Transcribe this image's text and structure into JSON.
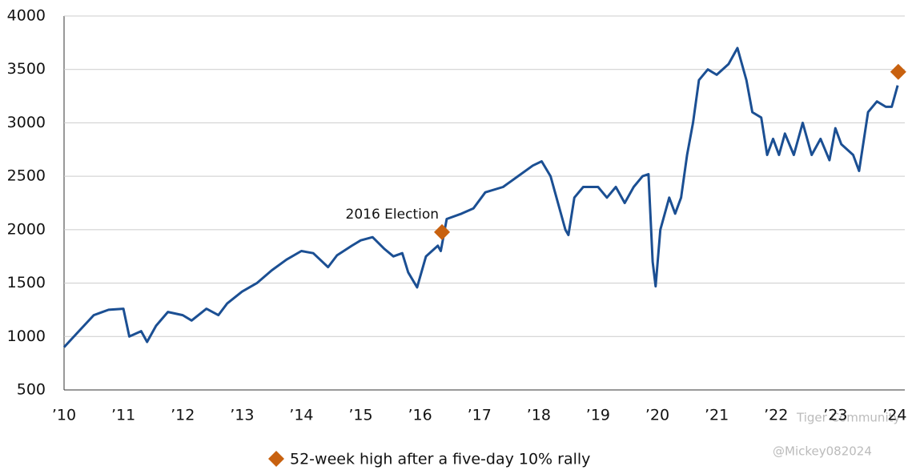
{
  "chart_data": {
    "type": "line",
    "color": "#1b4f93",
    "x": [
      2010.0,
      2010.25,
      2010.5,
      2010.75,
      2011.0,
      2011.1,
      2011.3,
      2011.4,
      2011.55,
      2011.75,
      2012.0,
      2012.15,
      2012.4,
      2012.6,
      2012.75,
      2013.0,
      2013.25,
      2013.5,
      2013.75,
      2014.0,
      2014.2,
      2014.45,
      2014.6,
      2014.85,
      2015.0,
      2015.2,
      2015.4,
      2015.55,
      2015.7,
      2015.8,
      2015.95,
      2016.1,
      2016.3,
      2016.35,
      2016.45,
      2016.7,
      2016.9,
      2017.1,
      2017.4,
      2017.65,
      2017.9,
      2018.05,
      2018.2,
      2018.3,
      2018.45,
      2018.5,
      2018.6,
      2018.75,
      2019.0,
      2019.15,
      2019.3,
      2019.45,
      2019.6,
      2019.75,
      2019.85,
      2019.92,
      2019.97,
      2020.05,
      2020.2,
      2020.3,
      2020.4,
      2020.5,
      2020.6,
      2020.7,
      2020.85,
      2021.0,
      2021.2,
      2021.35,
      2021.5,
      2021.6,
      2021.75,
      2021.85,
      2021.95,
      2022.05,
      2022.15,
      2022.3,
      2022.45,
      2022.6,
      2022.75,
      2022.9,
      2023.0,
      2023.1,
      2023.3,
      2023.4,
      2023.55,
      2023.7,
      2023.85,
      2023.95,
      2024.05
    ],
    "values": [
      900,
      1050,
      1200,
      1250,
      1260,
      1000,
      1050,
      950,
      1100,
      1230,
      1200,
      1150,
      1260,
      1200,
      1310,
      1420,
      1500,
      1620,
      1720,
      1800,
      1780,
      1650,
      1760,
      1850,
      1900,
      1930,
      1820,
      1750,
      1780,
      1600,
      1460,
      1750,
      1850,
      1800,
      2100,
      2150,
      2200,
      2350,
      2400,
      2500,
      2600,
      2640,
      2500,
      2300,
      2000,
      1950,
      2300,
      2400,
      2400,
      2300,
      2400,
      2250,
      2400,
      2500,
      2520,
      1700,
      1470,
      2000,
      2300,
      2150,
      2300,
      2700,
      3000,
      3400,
      3500,
      3450,
      3550,
      3700,
      3400,
      3100,
      3050,
      2700,
      2850,
      2700,
      2900,
      2700,
      3000,
      2700,
      2850,
      2650,
      2950,
      2800,
      2700,
      2550,
      3100,
      3200,
      3150,
      3150,
      3350
    ],
    "highlights": {
      "name": "52-week high after a five-day 10% rally",
      "color": "#c8610f",
      "x": [
        2016.37,
        2024.06
      ],
      "values": [
        1977,
        3477
      ]
    },
    "annotation": "2016 Election",
    "xlim": [
      2010,
      2024.17
    ],
    "xticks": [
      {
        "value": 2010,
        "label": "’10"
      },
      {
        "value": 2011,
        "label": "’11"
      },
      {
        "value": 2012,
        "label": "’12"
      },
      {
        "value": 2013,
        "label": "’13"
      },
      {
        "value": 2014,
        "label": "’14"
      },
      {
        "value": 2015,
        "label": "’15"
      },
      {
        "value": 2016,
        "label": "’16"
      },
      {
        "value": 2017,
        "label": "’17"
      },
      {
        "value": 2018,
        "label": "’18"
      },
      {
        "value": 2019,
        "label": "’19"
      },
      {
        "value": 2020,
        "label": "’20"
      },
      {
        "value": 2021,
        "label": "’21"
      },
      {
        "value": 2022,
        "label": "’22"
      },
      {
        "value": 2023,
        "label": "’23"
      },
      {
        "value": 2024,
        "label": "’24"
      }
    ],
    "ylim": [
      500,
      4000
    ],
    "yticks": [
      500,
      1000,
      1500,
      2000,
      2500,
      3000,
      3500,
      4000
    ],
    "grid": true
  },
  "watermark": {
    "brand": "Tiger Community",
    "user": "@Mickey082024"
  }
}
